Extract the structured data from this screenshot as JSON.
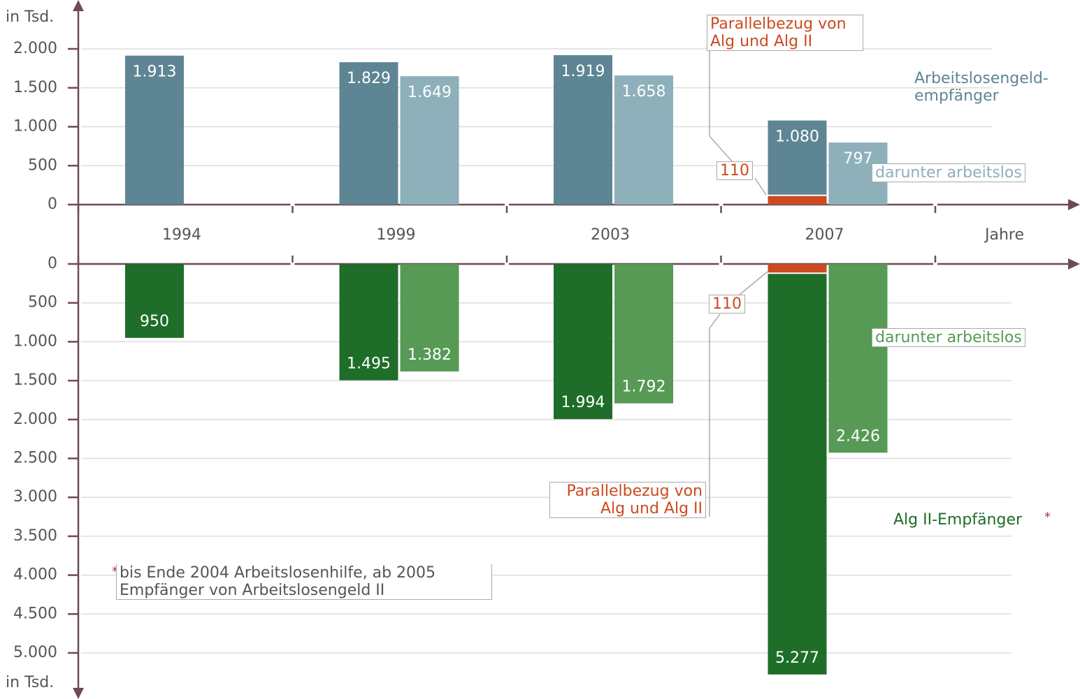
{
  "chart_data": [
    {
      "type": "bar",
      "y_label": "in Tsd.",
      "x_label": "Jahre",
      "categories": [
        "1994",
        "1999",
        "2003",
        "2007"
      ],
      "ylim": [
        0,
        2000
      ],
      "yticks": [
        0,
        500,
        {
          "value": 1000,
          "label": "1.000"
        },
        {
          "value": 1500,
          "label": "1.500"
        },
        {
          "value": 2000,
          "label": "2.000"
        }
      ],
      "grid": true,
      "series": [
        {
          "name": "Arbeitslosengeld-empfänger",
          "color": "#5e8594",
          "values": [
            1913,
            1829,
            1919,
            1080
          ],
          "value_labels": [
            "1.913",
            "1.829",
            "1.919",
            "1.080"
          ]
        },
        {
          "name": "darunter arbeitslos",
          "color": "#8db0bb",
          "values": [
            null,
            1649,
            1658,
            797
          ],
          "value_labels": [
            null,
            "1.649",
            "1.658",
            "797"
          ]
        },
        {
          "name": "Parallelbezug von Alg und Alg II",
          "color": "#cc4a1f",
          "values": [
            null,
            null,
            null,
            110
          ],
          "value_labels": [
            null,
            null,
            null,
            "110"
          ]
        }
      ]
    },
    {
      "type": "bar",
      "y_label": "in Tsd.",
      "ylim": [
        0,
        5000
      ],
      "yticks": [
        0,
        500,
        {
          "value": 1000,
          "label": "1.000"
        },
        {
          "value": 1500,
          "label": "1.500"
        },
        {
          "value": 2000,
          "label": "2.000"
        },
        {
          "value": 2500,
          "label": "2.500"
        },
        {
          "value": 3000,
          "label": "3.000"
        },
        {
          "value": 3500,
          "label": "3.500"
        },
        {
          "value": 4000,
          "label": "4.000"
        },
        {
          "value": 4500,
          "label": "4.500"
        },
        {
          "value": 5000,
          "label": "5.000"
        }
      ],
      "grid": true,
      "series": [
        {
          "name": "Alg II-Empfänger",
          "color": "#1e6d28",
          "values": [
            950,
            1495,
            1994,
            5277
          ],
          "value_labels": [
            "950",
            "1.495",
            "1.994",
            "5.277"
          ]
        },
        {
          "name": "darunter arbeitslos",
          "color": "#569a55",
          "values": [
            null,
            1382,
            1792,
            2426
          ],
          "value_labels": [
            null,
            "1.382",
            "1.792",
            "2.426"
          ]
        },
        {
          "name": "Parallelbezug von Alg und Alg II",
          "color": "#cc4a1f",
          "values": [
            null,
            null,
            null,
            110
          ],
          "value_labels": [
            null,
            null,
            null,
            "110"
          ]
        }
      ],
      "footnote_marker": "*",
      "footnote": "bis Ende 2004 Arbeitslosenhilfe, ab 2005 Empfänger von Arbeitslosengeld II"
    }
  ]
}
